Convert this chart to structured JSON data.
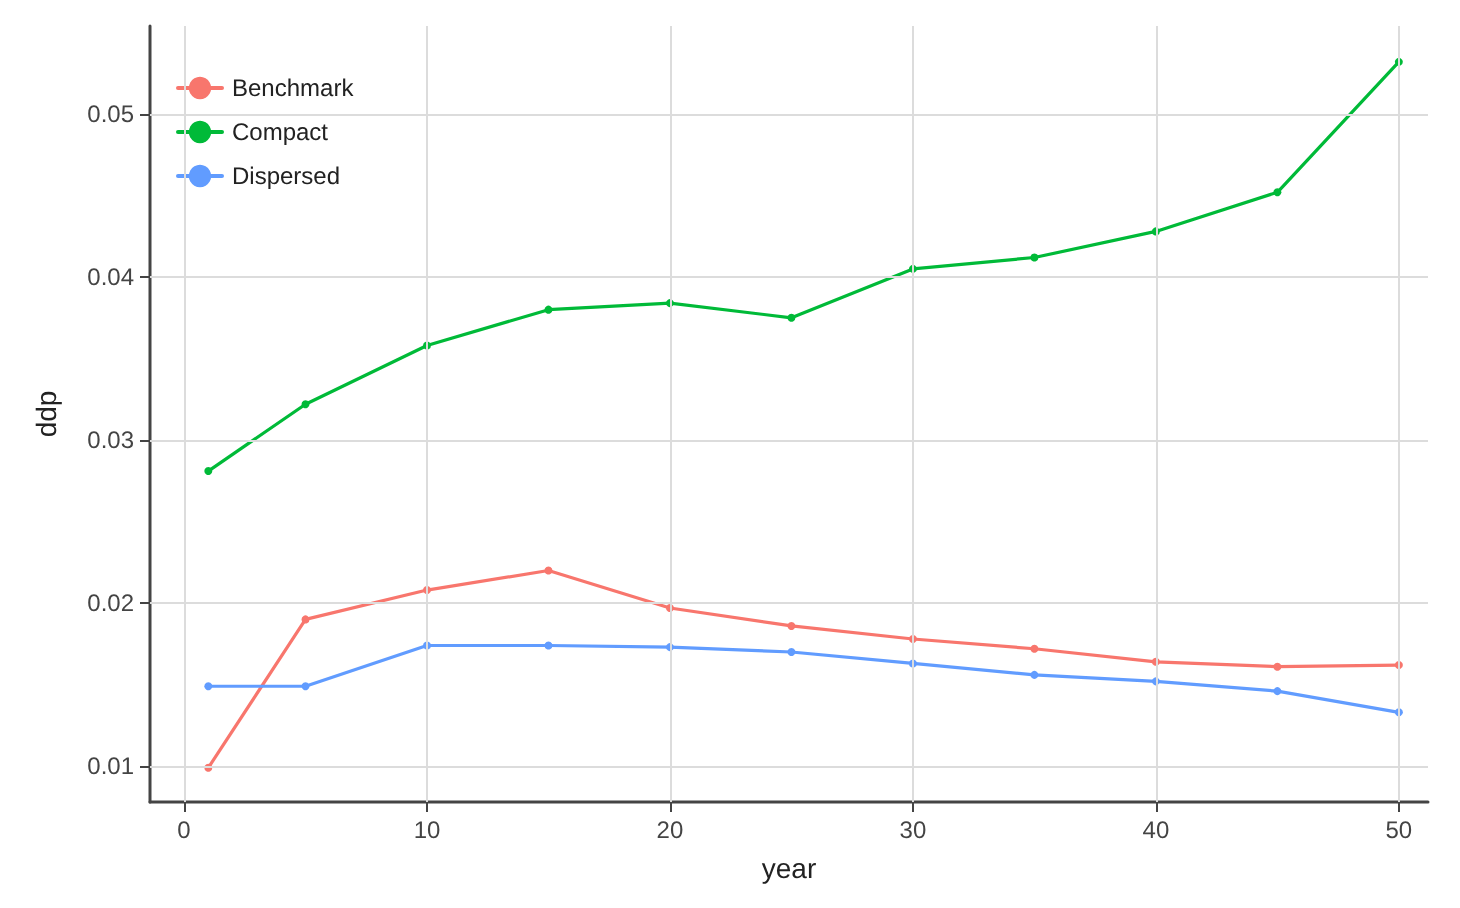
{
  "chart_data": {
    "type": "line",
    "xlabel": "year",
    "ylabel": "ddp",
    "x": [
      1,
      5,
      10,
      15,
      20,
      25,
      30,
      35,
      40,
      45,
      50
    ],
    "xlim": [
      -1.4,
      51.2
    ],
    "xticks": [
      0,
      10,
      20,
      30,
      40,
      50
    ],
    "ylim": [
      0.0078,
      0.0554
    ],
    "yticks": [
      0.01,
      0.02,
      0.03,
      0.04,
      0.05
    ],
    "grid": true,
    "legend": "top left",
    "marker": "circle",
    "line_style": "solid",
    "series": [
      {
        "name": "Benchmark",
        "color": "#f8766d",
        "values": [
          0.0099,
          0.019,
          0.0208,
          0.022,
          0.0197,
          0.0186,
          0.0178,
          0.0172,
          0.0164,
          0.0161,
          0.0162
        ]
      },
      {
        "name": "Compact",
        "color": "#00ba38",
        "values": [
          0.0281,
          0.0322,
          0.0358,
          0.038,
          0.0384,
          0.0375,
          0.0405,
          0.0412,
          0.0428,
          0.0452,
          0.0532
        ]
      },
      {
        "name": "Dispersed",
        "color": "#619cff",
        "values": [
          0.0149,
          0.0149,
          0.0174,
          0.0174,
          0.0173,
          0.017,
          0.0163,
          0.0156,
          0.0152,
          0.0146,
          0.0133
        ]
      }
    ]
  }
}
